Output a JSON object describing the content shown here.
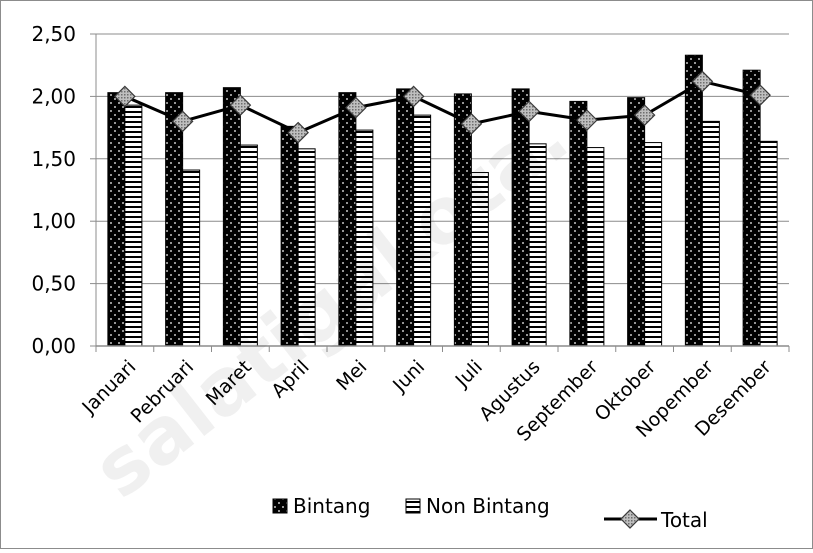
{
  "chart_data": {
    "type": "bar",
    "categories": [
      "Januari",
      "Pebruari",
      "Maret",
      "April",
      "Mei",
      "Juni",
      "Juli",
      "Agustus",
      "September",
      "Oktober",
      "Nopember",
      "Desember"
    ],
    "series": [
      {
        "name": "Bintang",
        "type": "bar",
        "values": [
          2.03,
          2.03,
          2.07,
          1.76,
          2.03,
          2.06,
          2.02,
          2.06,
          1.96,
          1.99,
          2.33,
          2.21
        ]
      },
      {
        "name": "Non Bintang",
        "type": "bar",
        "values": [
          1.93,
          1.41,
          1.61,
          1.58,
          1.73,
          1.85,
          1.39,
          1.62,
          1.59,
          1.63,
          1.8,
          1.64
        ]
      },
      {
        "name": "Total",
        "type": "line",
        "values": [
          2.0,
          1.8,
          1.93,
          1.71,
          1.91,
          2.0,
          1.78,
          1.88,
          1.81,
          1.85,
          2.12,
          2.01
        ]
      }
    ],
    "ylim": [
      0,
      2.5
    ],
    "yticks": [
      "0,00",
      "0,50",
      "1,00",
      "1,50",
      "2,00",
      "2,50"
    ],
    "grid": true,
    "legend_position": "bottom",
    "colors": {
      "bintang": "#000000",
      "non_bintang": "#ffffff",
      "total_line": "#000000",
      "total_marker": "#a6a6a6"
    }
  },
  "watermark": "salatigakota.bps.go.id"
}
